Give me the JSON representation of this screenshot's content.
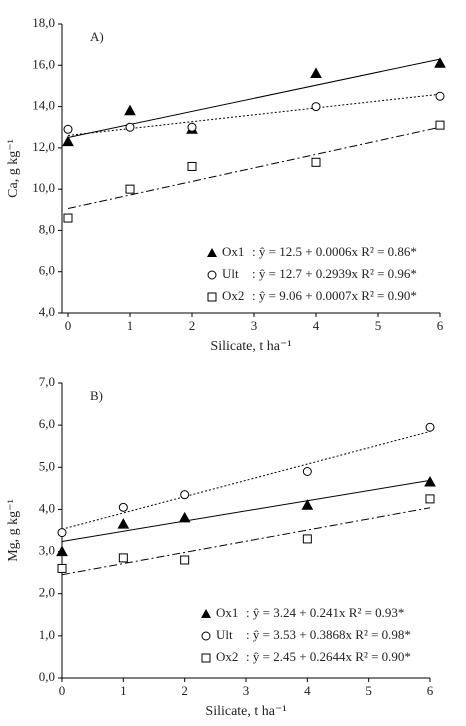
{
  "chart_data": [
    {
      "type": "scatter",
      "panel_label": "A)",
      "xlabel": "Silicate,  t ha⁻¹",
      "ylabel": "Ca, g kg⁻¹",
      "x": [
        0,
        1,
        2,
        4,
        6
      ],
      "xlim": [
        0,
        6
      ],
      "xticks": [
        0,
        1,
        2,
        3,
        4,
        5,
        6
      ],
      "ylim": [
        4,
        18
      ],
      "yticks": [
        {
          "value": 4,
          "label": "4,0"
        },
        {
          "value": 6,
          "label": "6,0"
        },
        {
          "value": 8,
          "label": "8,0"
        },
        {
          "value": 10,
          "label": "10,0"
        },
        {
          "value": 12,
          "label": "12,0"
        },
        {
          "value": 14,
          "label": "14,0"
        },
        {
          "value": 16,
          "label": "16,0"
        },
        {
          "value": 18,
          "label": "18,0"
        }
      ],
      "series": [
        {
          "name": "Ox1",
          "equation": ": ŷ = 12.5 + 0.0006x R² = 0.86*",
          "marker": "triangle",
          "line": "solid",
          "color": "#000000",
          "values": [
            12.3,
            13.8,
            12.9,
            15.6,
            16.1
          ],
          "trend": [
            12.5,
            16.3
          ]
        },
        {
          "name": "Ult",
          "equation": ": ŷ = 12.7 + 0.2939x R² = 0.96*",
          "marker": "circle",
          "line": "dotted",
          "color": "#000000",
          "values": [
            12.9,
            13.0,
            13.0,
            14.0,
            14.5
          ],
          "trend": [
            12.6,
            14.6
          ]
        },
        {
          "name": "Ox2",
          "equation": ": ŷ = 9.06 +  0.0007x R² = 0.90*",
          "marker": "square",
          "line": "dashdot",
          "color": "#000000",
          "values": [
            8.6,
            10.0,
            11.1,
            11.3,
            13.1
          ],
          "trend": [
            9.06,
            13.0
          ]
        }
      ]
    },
    {
      "type": "scatter",
      "panel_label": "B)",
      "xlabel": "Silicate,  t ha⁻¹",
      "ylabel": "Mg, g kg⁻¹",
      "x": [
        0,
        1,
        2,
        4,
        6
      ],
      "xlim": [
        0,
        6
      ],
      "xticks": [
        0,
        1,
        2,
        3,
        4,
        5,
        6
      ],
      "ylim": [
        0,
        7
      ],
      "yticks": [
        {
          "value": 0,
          "label": "0,0"
        },
        {
          "value": 1,
          "label": "1,0"
        },
        {
          "value": 2,
          "label": "2,0"
        },
        {
          "value": 3,
          "label": "3,0"
        },
        {
          "value": 4,
          "label": "4,0"
        },
        {
          "value": 5,
          "label": "5,0"
        },
        {
          "value": 6,
          "label": "6,0"
        },
        {
          "value": 7,
          "label": "7,0"
        }
      ],
      "series": [
        {
          "name": "Ox1",
          "equation": ": ŷ =  3.24 + 0.241x  R² = 0.93*",
          "marker": "triangle",
          "line": "solid",
          "color": "#000000",
          "values": [
            3.0,
            3.65,
            3.8,
            4.1,
            4.65
          ],
          "trend": [
            3.24,
            4.69
          ]
        },
        {
          "name": "Ult",
          "equation": ":  ŷ = 3.53 + 0.3868x R² = 0.98*",
          "marker": "circle",
          "line": "dotted",
          "color": "#000000",
          "values": [
            3.45,
            4.05,
            4.35,
            4.9,
            5.95
          ],
          "trend": [
            3.53,
            5.85
          ]
        },
        {
          "name": "Ox2",
          "equation": ": ŷ = 2.45 + 0.2644x  R² = 0.90*",
          "marker": "square",
          "line": "dashdot",
          "color": "#000000",
          "values": [
            2.6,
            2.85,
            2.8,
            3.3,
            4.25
          ],
          "trend": [
            2.45,
            4.04
          ]
        }
      ]
    }
  ]
}
